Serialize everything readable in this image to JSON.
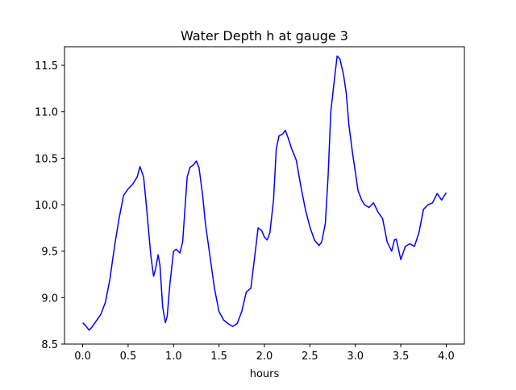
{
  "chart_data": {
    "type": "line",
    "title": "Water Depth h at gauge 3",
    "xlabel": "hours",
    "ylabel": "",
    "xlim": [
      -0.2,
      4.2
    ],
    "ylim": [
      8.5,
      11.7
    ],
    "xticks": [
      0.0,
      0.5,
      1.0,
      1.5,
      2.0,
      2.5,
      3.0,
      3.5,
      4.0
    ],
    "xtick_labels": [
      "0.0",
      "0.5",
      "1.0",
      "1.5",
      "2.0",
      "2.5",
      "3.0",
      "3.5",
      "4.0"
    ],
    "yticks": [
      8.5,
      9.0,
      9.5,
      10.0,
      10.5,
      11.0,
      11.5
    ],
    "ytick_labels": [
      "8.5",
      "9.0",
      "9.5",
      "10.0",
      "10.5",
      "11.0",
      "11.5"
    ],
    "grid": false,
    "series": [
      {
        "color": "#0000ff",
        "x": [
          0.0,
          0.03,
          0.07,
          0.1,
          0.15,
          0.2,
          0.25,
          0.3,
          0.35,
          0.4,
          0.45,
          0.5,
          0.55,
          0.6,
          0.63,
          0.67,
          0.7,
          0.75,
          0.78,
          0.8,
          0.83,
          0.85,
          0.88,
          0.91,
          0.93,
          0.96,
          1.0,
          1.03,
          1.07,
          1.1,
          1.15,
          1.18,
          1.22,
          1.25,
          1.28,
          1.32,
          1.35,
          1.4,
          1.45,
          1.5,
          1.55,
          1.6,
          1.65,
          1.7,
          1.75,
          1.8,
          1.85,
          1.9,
          1.93,
          1.97,
          2.0,
          2.03,
          2.06,
          2.1,
          2.13,
          2.16,
          2.2,
          2.23,
          2.26,
          2.3,
          2.35,
          2.4,
          2.45,
          2.5,
          2.55,
          2.6,
          2.63,
          2.67,
          2.7,
          2.73,
          2.77,
          2.8,
          2.83,
          2.87,
          2.9,
          2.93,
          2.97,
          3.0,
          3.03,
          3.07,
          3.1,
          3.15,
          3.2,
          3.25,
          3.3,
          3.35,
          3.4,
          3.43,
          3.45,
          3.5,
          3.55,
          3.6,
          3.65,
          3.7,
          3.75,
          3.8,
          3.85,
          3.9,
          3.95,
          4.0
        ],
        "y": [
          8.73,
          8.7,
          8.65,
          8.68,
          8.75,
          8.82,
          8.95,
          9.2,
          9.55,
          9.85,
          10.1,
          10.17,
          10.22,
          10.3,
          10.41,
          10.3,
          10.0,
          9.45,
          9.23,
          9.3,
          9.46,
          9.35,
          8.9,
          8.73,
          8.8,
          9.15,
          9.5,
          9.52,
          9.48,
          9.6,
          10.3,
          10.4,
          10.43,
          10.47,
          10.4,
          10.1,
          9.8,
          9.45,
          9.1,
          8.85,
          8.76,
          8.72,
          8.69,
          8.72,
          8.85,
          9.06,
          9.1,
          9.5,
          9.75,
          9.72,
          9.65,
          9.62,
          9.7,
          10.05,
          10.6,
          10.74,
          10.76,
          10.8,
          10.72,
          10.6,
          10.48,
          10.2,
          9.95,
          9.76,
          9.62,
          9.56,
          9.6,
          9.8,
          10.3,
          11.0,
          11.35,
          11.6,
          11.57,
          11.4,
          11.2,
          10.85,
          10.55,
          10.35,
          10.15,
          10.05,
          10.0,
          9.97,
          10.02,
          9.92,
          9.85,
          9.6,
          9.5,
          9.62,
          9.63,
          9.41,
          9.55,
          9.58,
          9.55,
          9.7,
          9.95,
          10.0,
          10.02,
          10.12,
          10.05,
          10.13
        ]
      }
    ]
  }
}
